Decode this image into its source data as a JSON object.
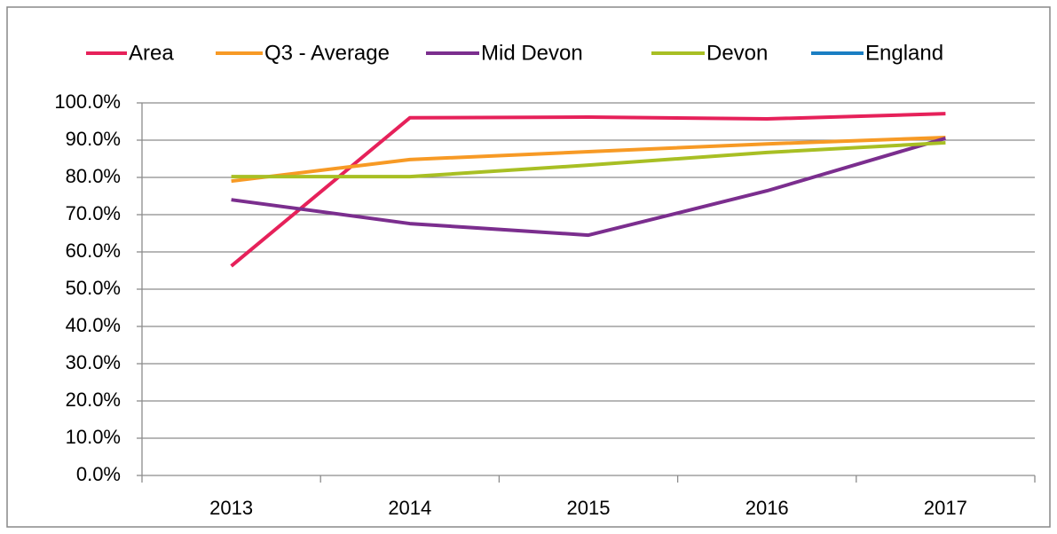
{
  "chart_data": {
    "type": "line",
    "categories": [
      "2013",
      "2014",
      "2015",
      "2016",
      "2017"
    ],
    "series": [
      {
        "name": "Area",
        "color": "#e6215a",
        "values": [
          56.2,
          96,
          96.2,
          95.7,
          97.1
        ]
      },
      {
        "name": "Q3 - Average",
        "color": "#f79a25",
        "values": [
          79,
          84.8,
          86.9,
          89,
          90.7
        ]
      },
      {
        "name": "Mid Devon",
        "color": "#7b2e8e",
        "values": [
          74,
          67.6,
          64.5,
          76.4,
          90.5
        ]
      },
      {
        "name": "Devon",
        "color": "#a8bf24",
        "values": [
          80.2,
          80.2,
          83.3,
          86.7,
          89.3
        ]
      },
      {
        "name": "England",
        "color": "#1a7ec3",
        "values": [
          null,
          null,
          null,
          null,
          null
        ]
      }
    ],
    "ylim": [
      0,
      100
    ],
    "yticks": [
      {
        "value": 0,
        "label": "0.0%"
      },
      {
        "value": 10,
        "label": "10.0%"
      },
      {
        "value": 20,
        "label": "20.0%"
      },
      {
        "value": 30,
        "label": "30.0%"
      },
      {
        "value": 40,
        "label": "40.0%"
      },
      {
        "value": 50,
        "label": "50.0%"
      },
      {
        "value": 60,
        "label": "60.0%"
      },
      {
        "value": 70,
        "label": "70.0%"
      },
      {
        "value": 80,
        "label": "80.0%"
      },
      {
        "value": 90,
        "label": "90.0%"
      },
      {
        "value": 100,
        "label": "100.0%"
      }
    ],
    "grid": true,
    "legend": "top"
  }
}
